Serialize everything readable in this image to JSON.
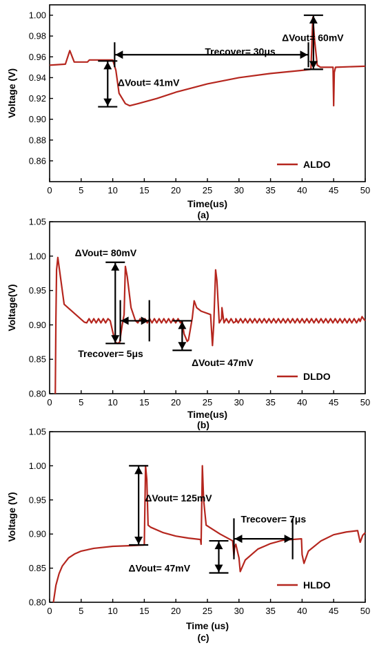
{
  "chart_data": [
    {
      "panel": "(a)",
      "type": "line",
      "xlabel": "Time(us)",
      "ylabel": "Voltage (V)",
      "xlim": [
        0,
        50
      ],
      "ylim": [
        0.84,
        1.01
      ],
      "xticks": [
        0,
        5,
        10,
        15,
        20,
        25,
        30,
        35,
        40,
        45,
        50
      ],
      "yticks": [
        0.86,
        0.88,
        0.9,
        0.92,
        0.94,
        0.96,
        0.98,
        1.0
      ],
      "ytick_labels": [
        "0.86",
        "0.88",
        "0.90",
        "0.92",
        "0.94",
        "0.96",
        "0.98",
        "1.00"
      ],
      "legend": "bottom-right",
      "series": [
        {
          "name": "ALDO",
          "color": "#b5261e",
          "x": [
            0,
            2.5,
            3.2,
            3.9,
            5,
            6,
            6.3,
            8,
            10,
            10.5,
            11,
            12,
            12.7,
            14,
            17,
            20,
            25,
            30,
            35,
            40,
            41.4,
            41.7,
            42,
            42.4,
            42.9,
            44.9,
            45.0,
            45.1,
            45.3,
            50
          ],
          "y": [
            0.952,
            0.953,
            0.966,
            0.955,
            0.955,
            0.955,
            0.957,
            0.957,
            0.957,
            0.947,
            0.925,
            0.915,
            0.913,
            0.915,
            0.92,
            0.926,
            0.934,
            0.94,
            0.944,
            0.947,
            0.948,
            0.998,
            0.975,
            0.952,
            0.95,
            0.95,
            0.913,
            0.945,
            0.95,
            0.951
          ]
        }
      ],
      "annotations": [
        {
          "text": "ΔVout= 60mV",
          "x": 36.8,
          "y": 0.975
        },
        {
          "text": "Trecover= 30μs",
          "x": 24.6,
          "y": 0.962
        },
        {
          "text": "ΔVout= 41mV",
          "x": 10.8,
          "y": 0.932
        }
      ]
    },
    {
      "panel": "(b)",
      "type": "line",
      "xlabel": "Time(us)",
      "ylabel": "Voltage(V)",
      "xlim": [
        0,
        50
      ],
      "ylim": [
        0.8,
        1.05
      ],
      "xticks": [
        0,
        5,
        10,
        15,
        20,
        25,
        30,
        35,
        40,
        45,
        50
      ],
      "yticks": [
        0.8,
        0.85,
        0.9,
        0.95,
        1.0,
        1.05
      ],
      "ytick_labels": [
        "0.80",
        "0.85",
        "0.90",
        "0.95",
        "1.00",
        "1.05"
      ],
      "legend": "bottom-right",
      "series": [
        {
          "name": "DLDO",
          "color": "#b5261e",
          "ripple": {
            "segments": [
              [
                5.5,
                9.6
              ],
              [
                13.6,
                21.0
              ],
              [
                26.5,
                49.2
              ]
            ],
            "period": 0.75,
            "low": 0.903,
            "high": 0.909
          },
          "x": [
            0.9,
            1.0,
            1.1,
            1.3,
            2.3,
            5.5,
            9.6,
            10.0,
            10.4,
            10.8,
            11.1,
            11.5,
            11.8,
            12.0,
            12.3,
            12.9,
            13.6,
            21.0,
            21.3,
            21.8,
            22.0,
            22.6,
            22.9,
            23.3,
            24.0,
            25.5,
            25.8,
            26.0,
            26.3,
            26.5,
            27.3,
            29.5,
            49.2,
            49.5,
            49.8,
            50
          ],
          "y": [
            0.8,
            0.91,
            0.98,
            0.998,
            0.93,
            0.904,
            0.906,
            0.89,
            0.875,
            0.873,
            0.875,
            0.9,
            0.915,
            0.985,
            0.97,
            0.925,
            0.906,
            0.905,
            0.887,
            0.876,
            0.878,
            0.91,
            0.935,
            0.925,
            0.92,
            0.915,
            0.87,
            0.9,
            0.98,
            0.965,
            0.925,
            0.905,
            0.905,
            0.912,
            0.908,
            0.906
          ]
        }
      ],
      "annotations": [
        {
          "text": "ΔVout= 80mV",
          "x": 4.0,
          "y": 1.0
        },
        {
          "text": "Trecover= 5μs",
          "x": 4.5,
          "y": 0.853
        },
        {
          "text": "ΔVout= 47mV",
          "x": 22.5,
          "y": 0.84
        }
      ]
    },
    {
      "panel": "(c)",
      "type": "line",
      "xlabel": "Time (us)",
      "ylabel": "Voltage (V)",
      "xlim": [
        0,
        50
      ],
      "ylim": [
        0.8,
        1.05
      ],
      "xticks": [
        0,
        5,
        10,
        15,
        20,
        25,
        30,
        35,
        40,
        45,
        50
      ],
      "yticks": [
        0.8,
        0.85,
        0.9,
        0.95,
        1.0,
        1.05
      ],
      "ytick_labels": [
        "0.80",
        "0.85",
        "0.90",
        "0.95",
        "1.00",
        "1.05"
      ],
      "legend": "bottom-right",
      "series": [
        {
          "name": "HLDO",
          "color": "#b5261e",
          "x": [
            0.6,
            1.0,
            1.5,
            2.0,
            3.0,
            4.0,
            5.0,
            7.0,
            10.0,
            13.0,
            15.0,
            15.2,
            15.4,
            15.6,
            16.0,
            18.0,
            20.0,
            22.0,
            23.9,
            24.0,
            24.2,
            24.4,
            24.8,
            27.0,
            29.0,
            29.2,
            29.3,
            29.5,
            30.0,
            30.2,
            31.0,
            33.0,
            35.0,
            37.0,
            39.9,
            40.0,
            40.3,
            41.0,
            43.0,
            45.0,
            47.0,
            48.8,
            49.2,
            49.6,
            50.0
          ],
          "y": [
            0.8,
            0.825,
            0.842,
            0.853,
            0.865,
            0.871,
            0.875,
            0.879,
            0.882,
            0.883,
            0.884,
            1.0,
            0.98,
            0.913,
            0.91,
            0.902,
            0.897,
            0.894,
            0.892,
            0.885,
            1.0,
            0.95,
            0.913,
            0.9,
            0.89,
            0.868,
            0.88,
            0.885,
            0.865,
            0.845,
            0.862,
            0.878,
            0.886,
            0.891,
            0.893,
            0.87,
            0.857,
            0.875,
            0.89,
            0.899,
            0.903,
            0.905,
            0.888,
            0.898,
            0.902
          ]
        }
      ],
      "annotations": [
        {
          "text": "ΔVout= 125mV",
          "x": 15.1,
          "y": 0.948
        },
        {
          "text": "Trecover= 7μs",
          "x": 30.3,
          "y": 0.917
        },
        {
          "text": "ΔVout= 47mV",
          "x": 12.5,
          "y": 0.845
        }
      ]
    }
  ]
}
